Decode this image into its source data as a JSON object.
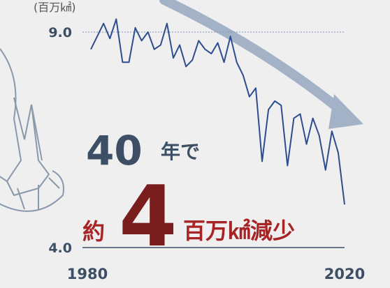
{
  "chart_data": {
    "type": "line",
    "unit_label": "(百万㎢)",
    "x": [
      1980,
      1981,
      1982,
      1983,
      1984,
      1985,
      1986,
      1987,
      1988,
      1989,
      1990,
      1991,
      1992,
      1993,
      1994,
      1995,
      1996,
      1997,
      1998,
      1999,
      2000,
      2001,
      2002,
      2003,
      2004,
      2005,
      2006,
      2007,
      2008,
      2009,
      2010,
      2011,
      2012,
      2013,
      2014,
      2015,
      2016,
      2017,
      2018,
      2019,
      2020
    ],
    "series": [
      {
        "color": "#2d4d8f",
        "values": [
          8.6,
          8.9,
          9.2,
          8.85,
          9.3,
          8.3,
          8.3,
          9.1,
          8.8,
          9.0,
          8.6,
          8.7,
          9.2,
          8.4,
          8.7,
          8.2,
          8.35,
          8.8,
          8.6,
          8.5,
          8.75,
          8.3,
          8.9,
          8.3,
          8.0,
          7.5,
          7.7,
          6.0,
          7.2,
          7.4,
          7.3,
          5.9,
          7.0,
          7.1,
          6.4,
          7.0,
          6.6,
          5.8,
          6.7,
          6.2,
          5.0
        ]
      }
    ],
    "xlim": [
      1980,
      2020
    ],
    "xticks": [
      1980,
      2020
    ],
    "ylim": [
      4,
      9
    ],
    "yticks": [
      {
        "value": 4,
        "label": "4.0"
      },
      {
        "value": 9,
        "label": "9.0"
      }
    ],
    "headline": {
      "years": "40",
      "years_suffix": "年で",
      "prefix": "約",
      "amount": "4",
      "suffix": "百万㎢減少"
    }
  }
}
